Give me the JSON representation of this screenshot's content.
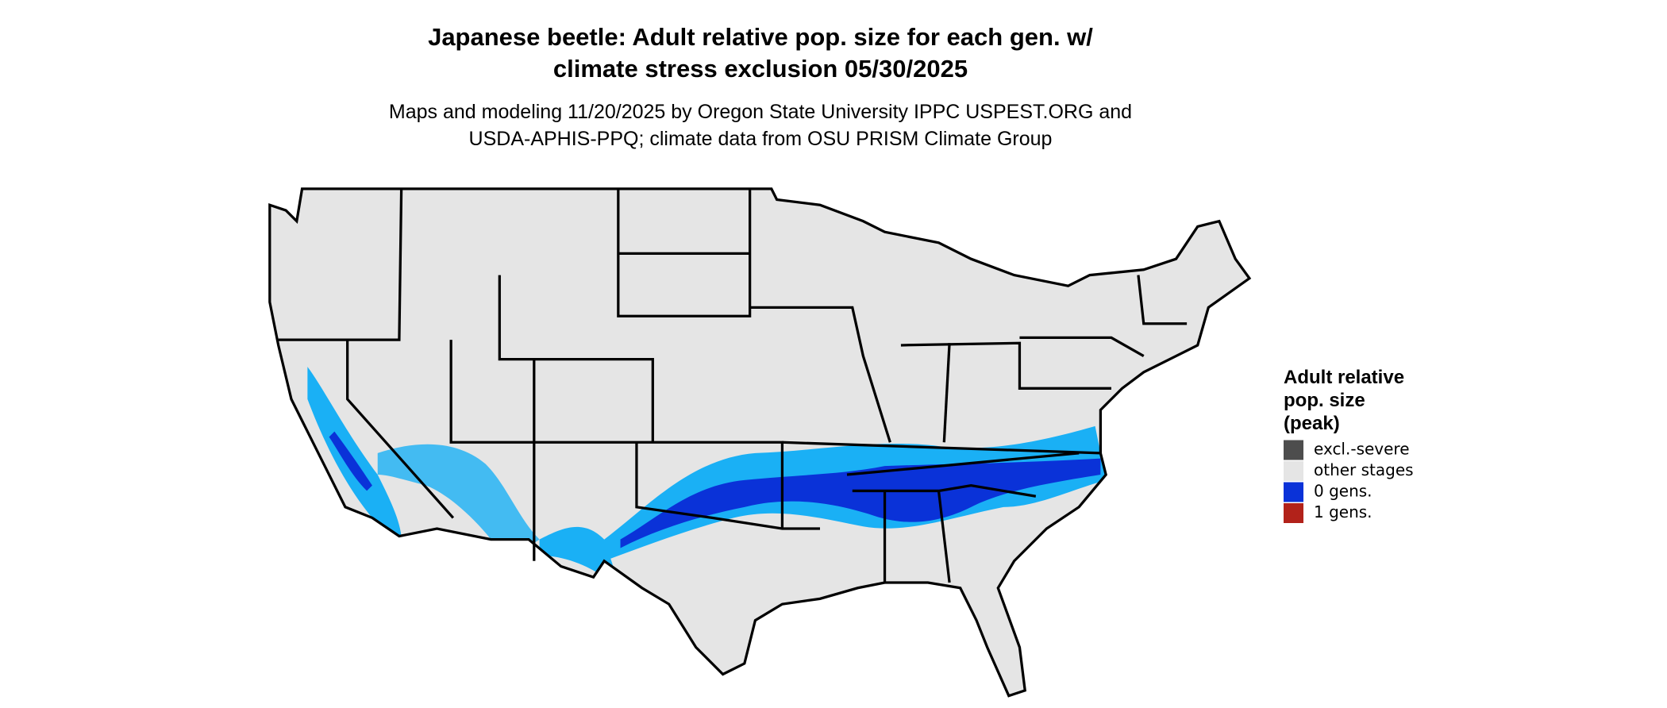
{
  "header": {
    "title_lines": [
      "Japanese beetle: Adult relative pop. size for each gen. w/",
      "climate stress exclusion 05/30/2025"
    ],
    "subtitle_lines": [
      "Maps and modeling 11/20/2025 by Oregon State University IPPC USPEST.ORG and",
      "USDA-APHIS-PPQ; climate data from OSU PRISM Climate Group"
    ]
  },
  "legend": {
    "title_lines": [
      "Adult relative",
      "pop. size",
      "(peak)"
    ],
    "items": [
      {
        "label": "excl.-severe",
        "color": "#4d4d4d"
      },
      {
        "label": "other stages",
        "color": "#e5e5e5"
      },
      {
        "label": "0 gens.",
        "color": "#0a32d8"
      },
      {
        "label": "1 gens.",
        "color": "#b2221a"
      }
    ]
  }
}
